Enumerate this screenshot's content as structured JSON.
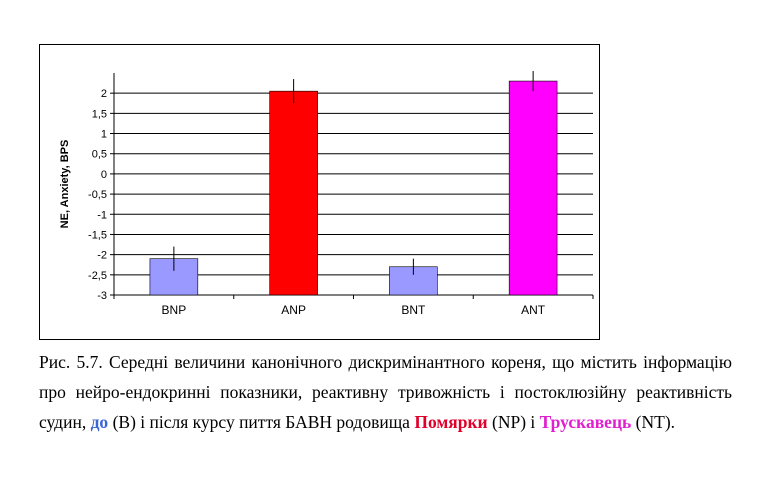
{
  "chart_data": {
    "type": "bar",
    "categories": [
      "BNP",
      "ANP",
      "BNT",
      "ANT"
    ],
    "values": [
      -2.1,
      2.05,
      -2.3,
      2.3
    ],
    "errors": [
      0.3,
      0.3,
      0.2,
      0.25
    ],
    "colors": [
      "#9999ff",
      "#ff0000",
      "#9999ff",
      "#ff00ff"
    ],
    "ylabel": "NE, Anxiety, BPS",
    "ylim": [
      -3,
      2.5
    ],
    "yticks": [
      -3,
      -2.5,
      -2,
      -1.5,
      -1,
      -0.5,
      0,
      0.5,
      1,
      1.5,
      2
    ],
    "ytick_labels": [
      "-3",
      "-2,5",
      "-2",
      "-1,5",
      "-1",
      "-0,5",
      "0",
      "0,5",
      "1",
      "1,5",
      "2"
    ],
    "grid": true
  },
  "caption": {
    "part1": "Рис. 5.7. Середні величини канонічного дискримінантного кореня, що містить інформацію про нейро-ендокринні показники, реактивну тривожність і постоклюзійну реактивність судин, ",
    "do": "до",
    "part2": " (B) і після курсу пиття БАВН родовища ",
    "pomyarky": "Помярки",
    "part3": " (NP) і ",
    "truskavets": "Трускавець",
    "part4": " (NT)."
  }
}
